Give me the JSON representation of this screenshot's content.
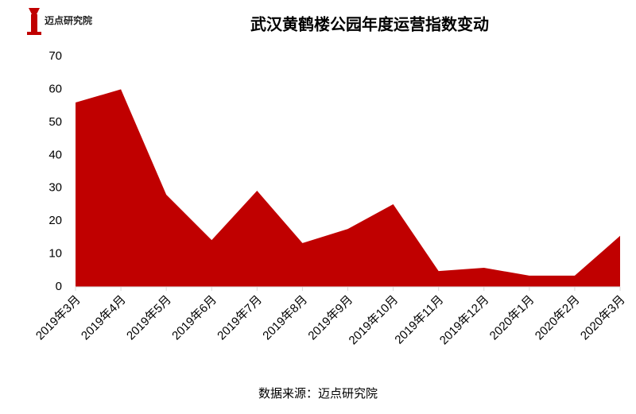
{
  "logo": "迈点研究院",
  "chart_data": {
    "type": "area",
    "title": "武汉黄鹤楼公园年度运营指数变动",
    "categories": [
      "2019年3月",
      "2019年4月",
      "2019年5月",
      "2019年6月",
      "2019年7月",
      "2019年8月",
      "2019年9月",
      "2019年10月",
      "2019年11月",
      "2019年12月",
      "2020年1月",
      "2020年2月",
      "2020年3月"
    ],
    "values": [
      56,
      60,
      28,
      14.2,
      29.2,
      13.3,
      17.6,
      25.1,
      4.8,
      5.8,
      3.4,
      3.4,
      15.5
    ],
    "color": "#c00000",
    "ylim": [
      0,
      70
    ],
    "yticks": [
      0,
      10,
      20,
      30,
      40,
      50,
      60,
      70
    ],
    "grid": false,
    "source": "数据来源：迈点研究院"
  }
}
